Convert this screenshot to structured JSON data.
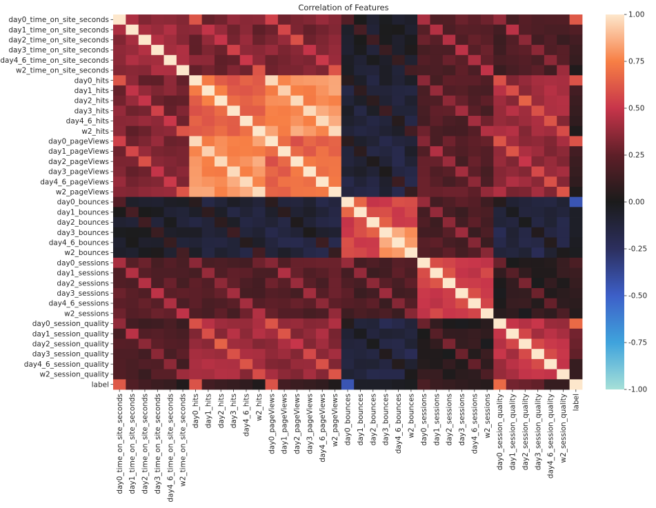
{
  "chart_data": {
    "type": "heatmap",
    "title": "Correlation of Features",
    "labels": [
      "day0_time_on_site_seconds",
      "day1_time_on_site_seconds",
      "day2_time_on_site_seconds",
      "day3_time_on_site_seconds",
      "day4_6_time_on_site_seconds",
      "w2_time_on_site_seconds",
      "day0_hits",
      "day1_hits",
      "day2_hits",
      "day3_hits",
      "day4_6_hits",
      "w2_hits",
      "day0_pageViews",
      "day1_pageViews",
      "day2_pageViews",
      "day3_pageViews",
      "day4_6_pageViews",
      "w2_pageViews",
      "day0_bounces",
      "day1_bounces",
      "day2_bounces",
      "day3_bounces",
      "day4_6_bounces",
      "w2_bounces",
      "day0_sessions",
      "day1_sessions",
      "day2_sessions",
      "day3_sessions",
      "day4_6_sessions",
      "w2_sessions",
      "day0_session_quality",
      "day1_session_quality",
      "day2_session_quality",
      "day3_session_quality",
      "day4_6_session_quality",
      "w2_session_quality",
      "label"
    ],
    "vmin": -1.0,
    "vmax": 1.0,
    "colorbar_ticks": [
      "1.00",
      "0.75",
      "0.50",
      "0.25",
      "0.00",
      "-0.25",
      "-0.50",
      "-0.75",
      "-1.00"
    ],
    "colorbar_values": [
      1.0,
      0.75,
      0.5,
      0.25,
      0.0,
      -0.25,
      -0.5,
      -0.75,
      -1.0
    ],
    "colormap": [
      "#a6e0d8",
      "#3fa3dc",
      "#3d5fc8",
      "#2c2f5e",
      "#1b1b1b",
      "#5e1f28",
      "#c7354a",
      "#f77f45",
      "#fde7cc"
    ],
    "groups": [
      {
        "name": "time_on_site",
        "index": 0
      },
      {
        "name": "hits",
        "index": 1
      },
      {
        "name": "pageViews",
        "index": 2
      },
      {
        "name": "bounces",
        "index": 3
      },
      {
        "name": "sessions",
        "index": 4
      },
      {
        "name": "session_quality",
        "index": 5
      }
    ],
    "block_corr": [
      [
        0.4,
        0.32,
        0.32,
        -0.05,
        0.22,
        0.18
      ],
      [
        0.32,
        0.62,
        0.8,
        -0.1,
        0.22,
        0.4
      ],
      [
        0.32,
        0.8,
        0.65,
        -0.12,
        0.22,
        0.38
      ],
      [
        -0.05,
        -0.1,
        -0.12,
        0.55,
        0.18,
        -0.15
      ],
      [
        0.22,
        0.22,
        0.22,
        0.18,
        0.5,
        0.05
      ],
      [
        0.18,
        0.4,
        0.38,
        -0.15,
        0.05,
        0.45
      ]
    ],
    "same_day_boost": [
      0.22,
      0.2,
      0.18,
      0.18,
      0.2,
      0.28
    ],
    "label_corr": [
      0.62,
      0.2,
      0.15,
      0.12,
      0.1,
      0.02,
      0.6,
      0.15,
      0.12,
      0.1,
      0.08,
      0.02,
      0.6,
      0.15,
      0.12,
      0.1,
      0.08,
      0.02,
      -0.45,
      -0.05,
      -0.05,
      -0.05,
      -0.03,
      -0.02,
      0.18,
      0.12,
      0.1,
      0.08,
      0.06,
      0.04,
      0.68,
      0.3,
      0.28,
      0.26,
      0.1,
      0.1,
      1.0
    ]
  }
}
